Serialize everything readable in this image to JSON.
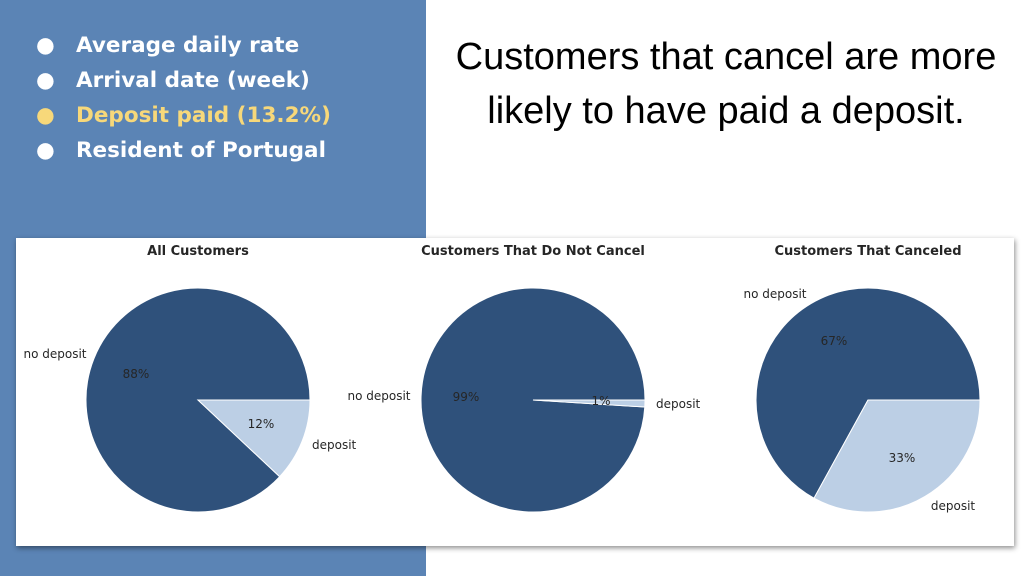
{
  "bullets": [
    {
      "text": "Average daily rate",
      "highlighted": false
    },
    {
      "text": "Arrival date (week)",
      "highlighted": false
    },
    {
      "text": "Deposit paid (13.2%)",
      "highlighted": true
    },
    {
      "text": "Resident of Portugal",
      "highlighted": false
    }
  ],
  "bullet_symbol": "●",
  "headline": "Customers that cancel are more likely to have paid a deposit.",
  "colors": {
    "panel_bg": "#5b84b5",
    "highlight": "#f7d87a",
    "no_deposit": "#2f517b",
    "deposit": "#bccfe5"
  },
  "chart_data": [
    {
      "type": "pie",
      "title": "All Customers",
      "labels": [
        "no deposit",
        "deposit"
      ],
      "values": [
        88,
        12
      ],
      "pct_labels": [
        "88%",
        "12%"
      ]
    },
    {
      "type": "pie",
      "title": "Customers That Do Not Cancel",
      "labels": [
        "no deposit",
        "deposit"
      ],
      "values": [
        99,
        1
      ],
      "pct_labels": [
        "99%",
        "1%"
      ]
    },
    {
      "type": "pie",
      "title": "Customers That Canceled",
      "labels": [
        "no deposit",
        "deposit"
      ],
      "values": [
        67,
        33
      ],
      "pct_labels": [
        "67%",
        "33%"
      ]
    }
  ]
}
